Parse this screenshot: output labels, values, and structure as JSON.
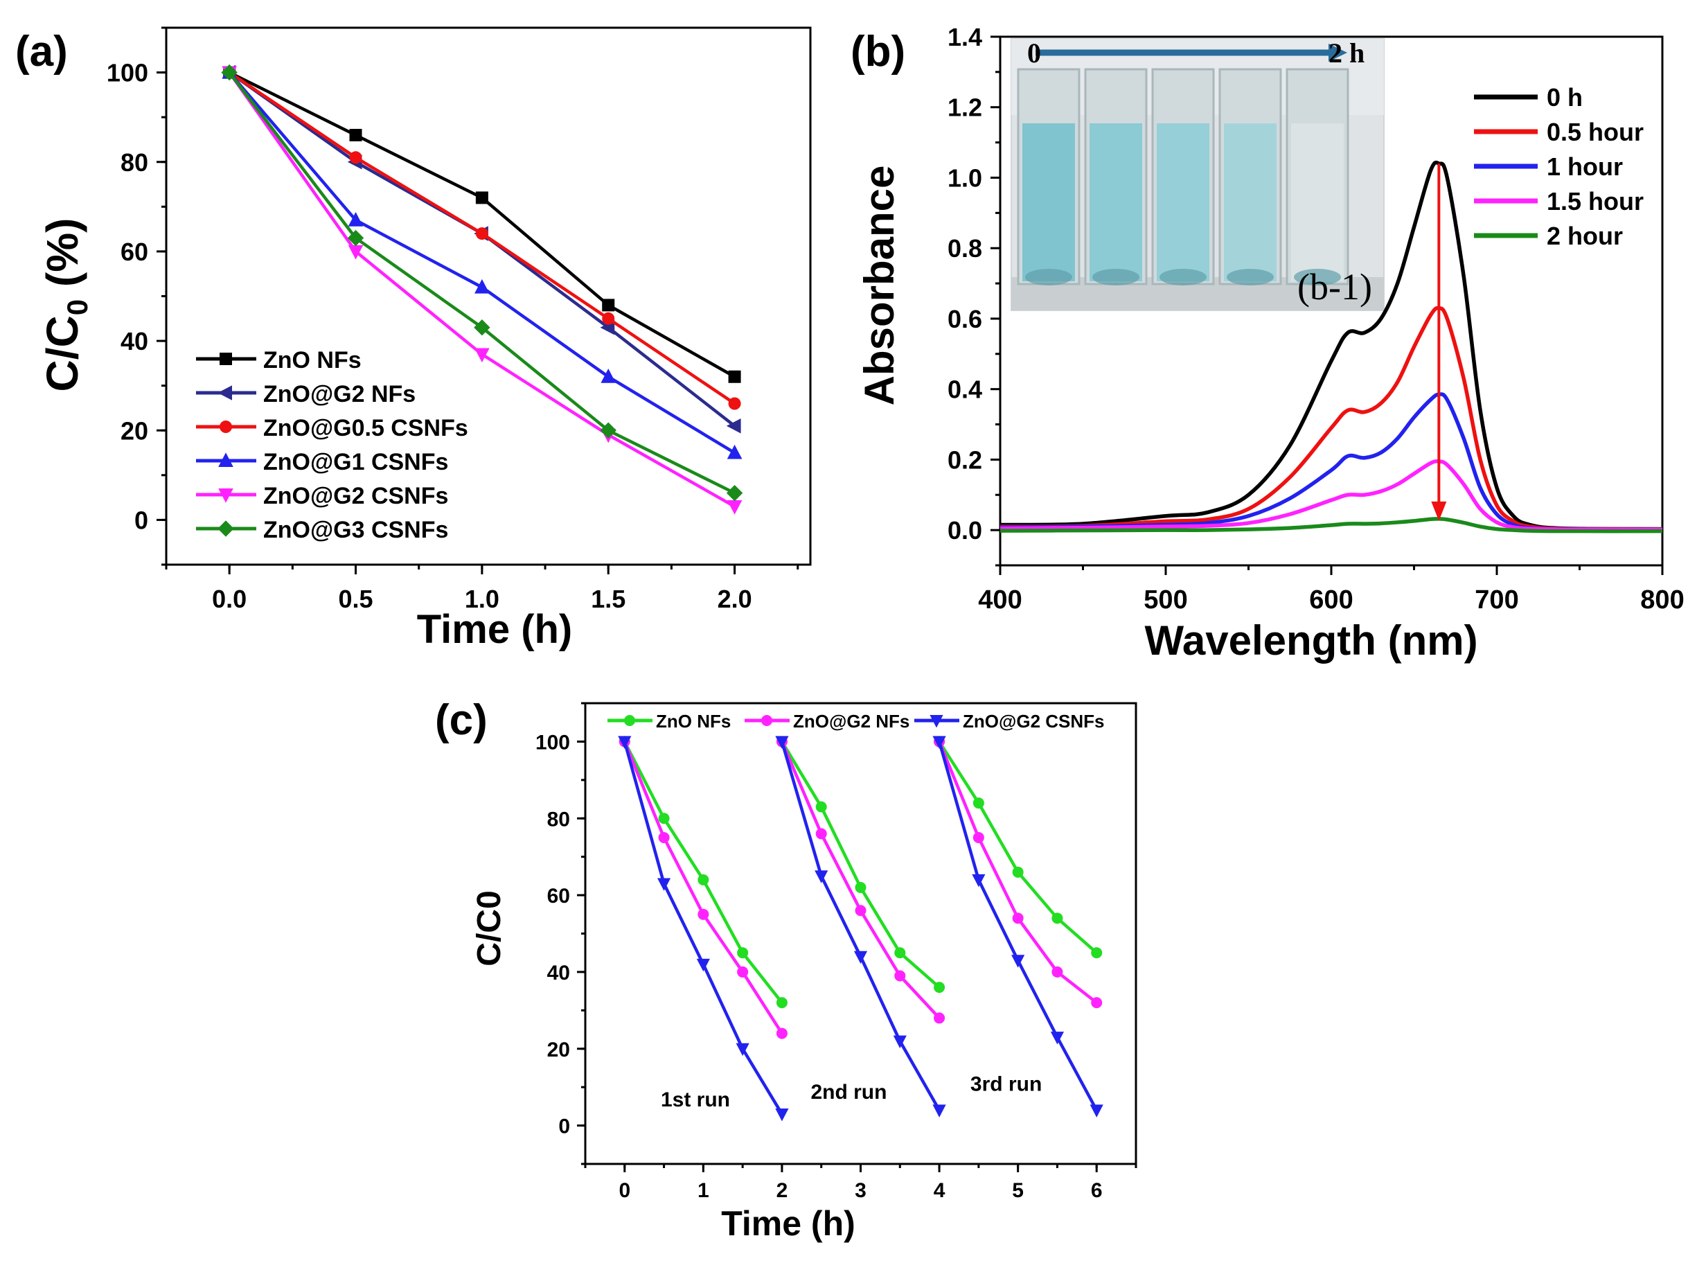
{
  "colors": {
    "black": "#000000",
    "navy": "#2b2b8f",
    "red": "#ee1111",
    "blue": "#2222ee",
    "magenta": "#ff22ff",
    "green": "#1a8a1a",
    "bright_green": "#22dd22",
    "cuvette_blue": "#86c9d3",
    "arrow_blue": "#2a6c9a"
  },
  "chart_data": [
    {
      "panel": "(a)",
      "type": "line",
      "xlabel": "Time (h)",
      "ylabel_main": "C/C",
      "ylabel_sub": "0",
      "ylabel_unit": " (%)",
      "xlim": [
        -0.25,
        2.3
      ],
      "ylim": [
        -10,
        110
      ],
      "xticks": [
        0.0,
        0.5,
        1.0,
        1.5,
        2.0
      ],
      "xtick_labels": [
        "0.0",
        "0.5",
        "1.0",
        "1.5",
        "2.0"
      ],
      "yticks": [
        0,
        20,
        40,
        60,
        80,
        100
      ],
      "ytick_labels": [
        "0",
        "20",
        "40",
        "60",
        "80",
        "100"
      ],
      "x": [
        0,
        0.5,
        1.0,
        1.5,
        2.0
      ],
      "legend_position": "bottom-left",
      "series": [
        {
          "name": "ZnO NFs",
          "color": "#000000",
          "marker": "square",
          "values": [
            100,
            86,
            72,
            48,
            32
          ]
        },
        {
          "name": "ZnO@G2 NFs",
          "color": "#2b2b8f",
          "marker": "tri-left",
          "values": [
            100,
            80,
            64,
            43,
            21
          ]
        },
        {
          "name": "ZnO@G0.5 CSNFs",
          "color": "#ee1111",
          "marker": "circle",
          "values": [
            100,
            81,
            64,
            45,
            26
          ]
        },
        {
          "name": "ZnO@G1 CSNFs",
          "color": "#2222ee",
          "marker": "tri-up",
          "values": [
            100,
            67,
            52,
            32,
            15
          ]
        },
        {
          "name": "ZnO@G2 CSNFs",
          "color": "#ff22ff",
          "marker": "tri-down",
          "values": [
            100,
            60,
            37,
            19,
            3
          ]
        },
        {
          "name": "ZnO@G3 CSNFs",
          "color": "#1a8a1a",
          "marker": "diamond",
          "values": [
            100,
            63,
            43,
            20,
            6
          ]
        }
      ]
    },
    {
      "panel": "(b)",
      "type": "line",
      "xlabel": "Wavelength (nm)",
      "ylabel": "Absorbance",
      "xlim": [
        400,
        800
      ],
      "ylim": [
        -0.1,
        1.4
      ],
      "xticks": [
        400,
        500,
        600,
        700,
        800
      ],
      "xtick_labels": [
        "400",
        "500",
        "600",
        "700",
        "800"
      ],
      "yticks": [
        0.0,
        0.2,
        0.4,
        0.6,
        0.8,
        1.0,
        1.2,
        1.4
      ],
      "ytick_labels": [
        "0.0",
        "0.2",
        "0.4",
        "0.6",
        "0.8",
        "1.0",
        "1.2",
        "1.4"
      ],
      "x": [
        400,
        450,
        500,
        525,
        550,
        575,
        600,
        610,
        620,
        630,
        640,
        650,
        660,
        665,
        670,
        680,
        690,
        700,
        710,
        720,
        740,
        800
      ],
      "legend_position": "top-right",
      "series": [
        {
          "name": "0 h",
          "color": "#000000",
          "values": [
            0.015,
            0.018,
            0.04,
            0.05,
            0.1,
            0.24,
            0.48,
            0.56,
            0.56,
            0.6,
            0.7,
            0.86,
            1.02,
            1.04,
            1.0,
            0.72,
            0.34,
            0.12,
            0.04,
            0.015,
            0.005,
            0.003
          ]
        },
        {
          "name": "0.5 hour",
          "color": "#ee1111",
          "values": [
            0.01,
            0.012,
            0.025,
            0.03,
            0.06,
            0.15,
            0.29,
            0.34,
            0.335,
            0.36,
            0.42,
            0.52,
            0.61,
            0.63,
            0.6,
            0.43,
            0.2,
            0.07,
            0.025,
            0.01,
            0.004,
            0.003
          ]
        },
        {
          "name": "1 hour",
          "color": "#2222ee",
          "values": [
            0.008,
            0.01,
            0.015,
            0.02,
            0.04,
            0.09,
            0.17,
            0.21,
            0.205,
            0.22,
            0.26,
            0.32,
            0.37,
            0.385,
            0.37,
            0.26,
            0.12,
            0.045,
            0.015,
            0.006,
            0.003,
            0.002
          ]
        },
        {
          "name": "1.5 hour",
          "color": "#ff22ff",
          "values": [
            0.005,
            0.007,
            0.01,
            0.012,
            0.02,
            0.045,
            0.085,
            0.1,
            0.1,
            0.11,
            0.13,
            0.16,
            0.19,
            0.195,
            0.185,
            0.13,
            0.06,
            0.022,
            0.008,
            0.004,
            0.002,
            0.001
          ]
        },
        {
          "name": "2 hour",
          "color": "#1a8a1a",
          "values": [
            -0.002,
            -0.001,
            0.0,
            0.0,
            0.002,
            0.006,
            0.014,
            0.018,
            0.018,
            0.019,
            0.022,
            0.026,
            0.031,
            0.032,
            0.03,
            0.021,
            0.01,
            0.003,
            0.0,
            -0.002,
            -0.003,
            -0.003
          ]
        }
      ],
      "annotation_arrow": {
        "x": 665,
        "from": 1.04,
        "to": 0.03,
        "color": "#ee1111"
      },
      "inset": {
        "label": "(b-1)",
        "arrow_start": "0",
        "arrow_end": "2 h",
        "cuvettes": 5
      }
    },
    {
      "panel": "(c)",
      "type": "line",
      "xlabel": "Time (h)",
      "ylabel_main": "C/C",
      "ylabel_sub": "0",
      "xlim": [
        -0.5,
        6.5
      ],
      "ylim": [
        -10,
        110
      ],
      "xticks": [
        0,
        1,
        2,
        3,
        4,
        5,
        6
      ],
      "xtick_labels": [
        "0",
        "1",
        "2",
        "3",
        "4",
        "5",
        "6"
      ],
      "yticks": [
        0,
        20,
        40,
        60,
        80,
        100
      ],
      "ytick_labels": [
        "0",
        "20",
        "40",
        "60",
        "80",
        "100"
      ],
      "legend_position": "top",
      "runs": [
        {
          "label": "1st run",
          "label_x": 0.9,
          "label_y": 5
        },
        {
          "label": "2nd run",
          "label_x": 2.85,
          "label_y": 7
        },
        {
          "label": "3rd run",
          "label_x": 4.85,
          "label_y": 9
        }
      ],
      "series": [
        {
          "name": "ZnO NFs",
          "color": "#22dd22",
          "marker": "circle",
          "segments": [
            {
              "x": [
                0,
                0.5,
                1.0,
                1.5,
                2.0
              ],
              "y": [
                100,
                80,
                64,
                45,
                32
              ]
            },
            {
              "x": [
                2,
                2.5,
                3.0,
                3.5,
                4.0
              ],
              "y": [
                100,
                83,
                62,
                45,
                36
              ]
            },
            {
              "x": [
                4,
                4.5,
                5.0,
                5.5,
                6.0
              ],
              "y": [
                100,
                84,
                66,
                54,
                45
              ]
            }
          ]
        },
        {
          "name": "ZnO@G2 NFs",
          "color": "#ff22ff",
          "marker": "circle",
          "segments": [
            {
              "x": [
                0,
                0.5,
                1.0,
                1.5,
                2.0
              ],
              "y": [
                100,
                75,
                55,
                40,
                24
              ]
            },
            {
              "x": [
                2,
                2.5,
                3.0,
                3.5,
                4.0
              ],
              "y": [
                100,
                76,
                56,
                39,
                28
              ]
            },
            {
              "x": [
                4,
                4.5,
                5.0,
                5.5,
                6.0
              ],
              "y": [
                100,
                75,
                54,
                40,
                32
              ]
            }
          ]
        },
        {
          "name": "ZnO@G2 CSNFs",
          "color": "#2222ee",
          "marker": "tri-down",
          "segments": [
            {
              "x": [
                0,
                0.5,
                1.0,
                1.5,
                2.0
              ],
              "y": [
                100,
                63,
                42,
                20,
                3
              ]
            },
            {
              "x": [
                2,
                2.5,
                3.0,
                3.5,
                4.0
              ],
              "y": [
                100,
                65,
                44,
                22,
                4
              ]
            },
            {
              "x": [
                4,
                4.5,
                5.0,
                5.5,
                6.0
              ],
              "y": [
                100,
                64,
                43,
                23,
                4
              ]
            }
          ]
        }
      ]
    }
  ]
}
